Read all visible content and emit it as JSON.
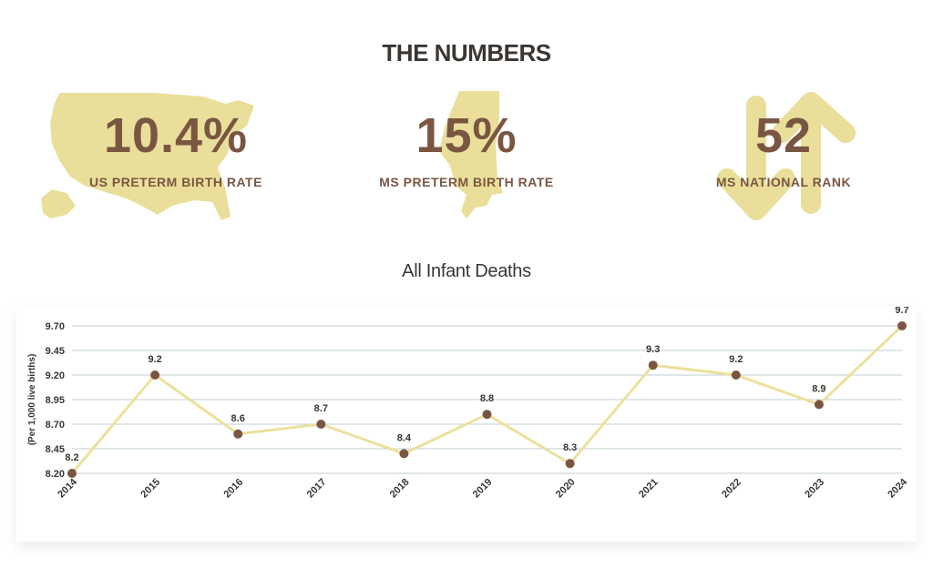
{
  "header": {
    "title": "THE NUMBERS"
  },
  "stats": [
    {
      "value": "10.4%",
      "label": "US PRETERM BIRTH RATE",
      "icon": "usa-map-icon"
    },
    {
      "value": "15%",
      "label": "MS PRETERM BIRTH RATE",
      "icon": "mississippi-map-icon"
    },
    {
      "value": "52",
      "label": "MS NATIONAL RANK",
      "icon": "up-down-arrows-icon"
    }
  ],
  "colors": {
    "accent_yellow": "#e9df9a",
    "value_brown": "#7a5642",
    "title_dark": "#3b3632",
    "grid": "#bfcfd6"
  },
  "chart_data": {
    "type": "line",
    "title": "All Infant Deaths",
    "ylabel": "(Per 1,000 live births)",
    "xlabel": "",
    "categories": [
      "2014",
      "2015",
      "2016",
      "2017",
      "2018",
      "2019",
      "2020",
      "2021",
      "2022",
      "2023",
      "2024"
    ],
    "values": [
      8.2,
      9.2,
      8.6,
      8.7,
      8.4,
      8.8,
      8.3,
      9.3,
      9.2,
      8.9,
      9.7
    ],
    "data_labels": [
      "8.2",
      "9.2",
      "8.6",
      "8.7",
      "8.4",
      "8.8",
      "8.3",
      "9.3",
      "9.2",
      "8.9",
      "9.7"
    ],
    "yticks": [
      "8.20",
      "8.45",
      "8.70",
      "8.95",
      "9.20",
      "9.45",
      "9.70"
    ],
    "ylim": [
      8.2,
      9.7
    ],
    "grid": true,
    "line_color": "#ece19c",
    "point_color": "#7a5642"
  }
}
